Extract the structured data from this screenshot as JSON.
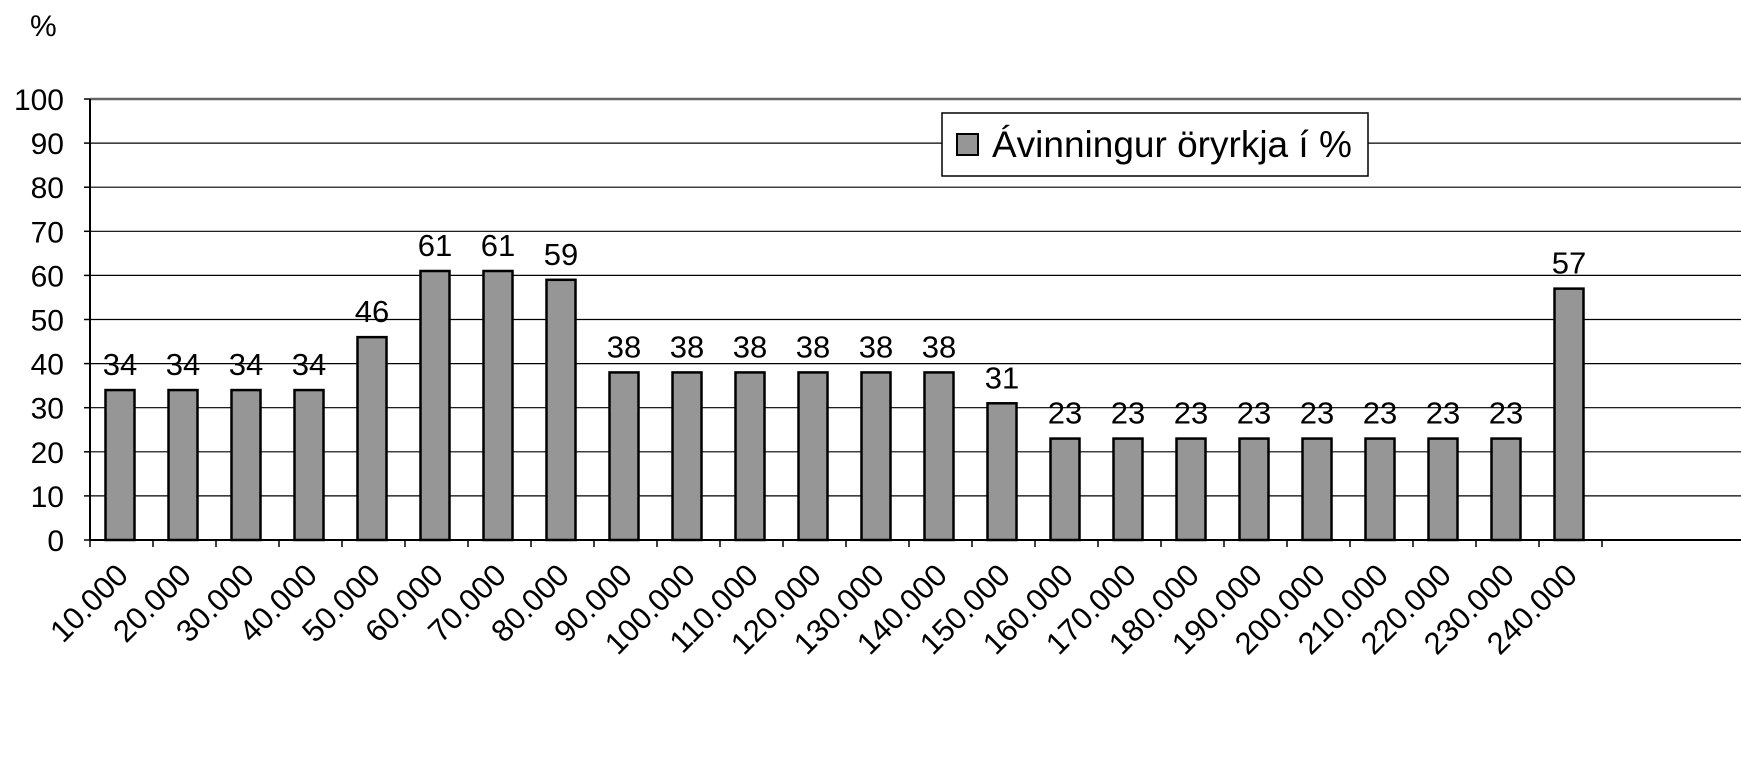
{
  "chart_data": {
    "type": "bar",
    "title": "",
    "ylabel": "%",
    "xlabel": "",
    "ylim": [
      0,
      100
    ],
    "yticks": [
      0,
      10,
      20,
      30,
      40,
      50,
      60,
      70,
      80,
      90,
      100
    ],
    "grid": true,
    "legend_position": "top-right",
    "categories": [
      "10.000",
      "20.000",
      "30.000",
      "40.000",
      "50.000",
      "60.000",
      "70.000",
      "80.000",
      "90.000",
      "100.000",
      "110.000",
      "120.000",
      "130.000",
      "140.000",
      "150.000",
      "160.000",
      "170.000",
      "180.000",
      "190.000",
      "200.000",
      "210.000",
      "220.000",
      "230.000",
      "240.000"
    ],
    "series": [
      {
        "name": "Ávinningur öryrkja í %",
        "color": "#969696",
        "values": [
          34,
          34,
          34,
          34,
          46,
          61,
          61,
          59,
          38,
          38,
          38,
          38,
          38,
          38,
          31,
          23,
          23,
          23,
          23,
          23,
          23,
          23,
          23,
          57
        ]
      }
    ]
  }
}
